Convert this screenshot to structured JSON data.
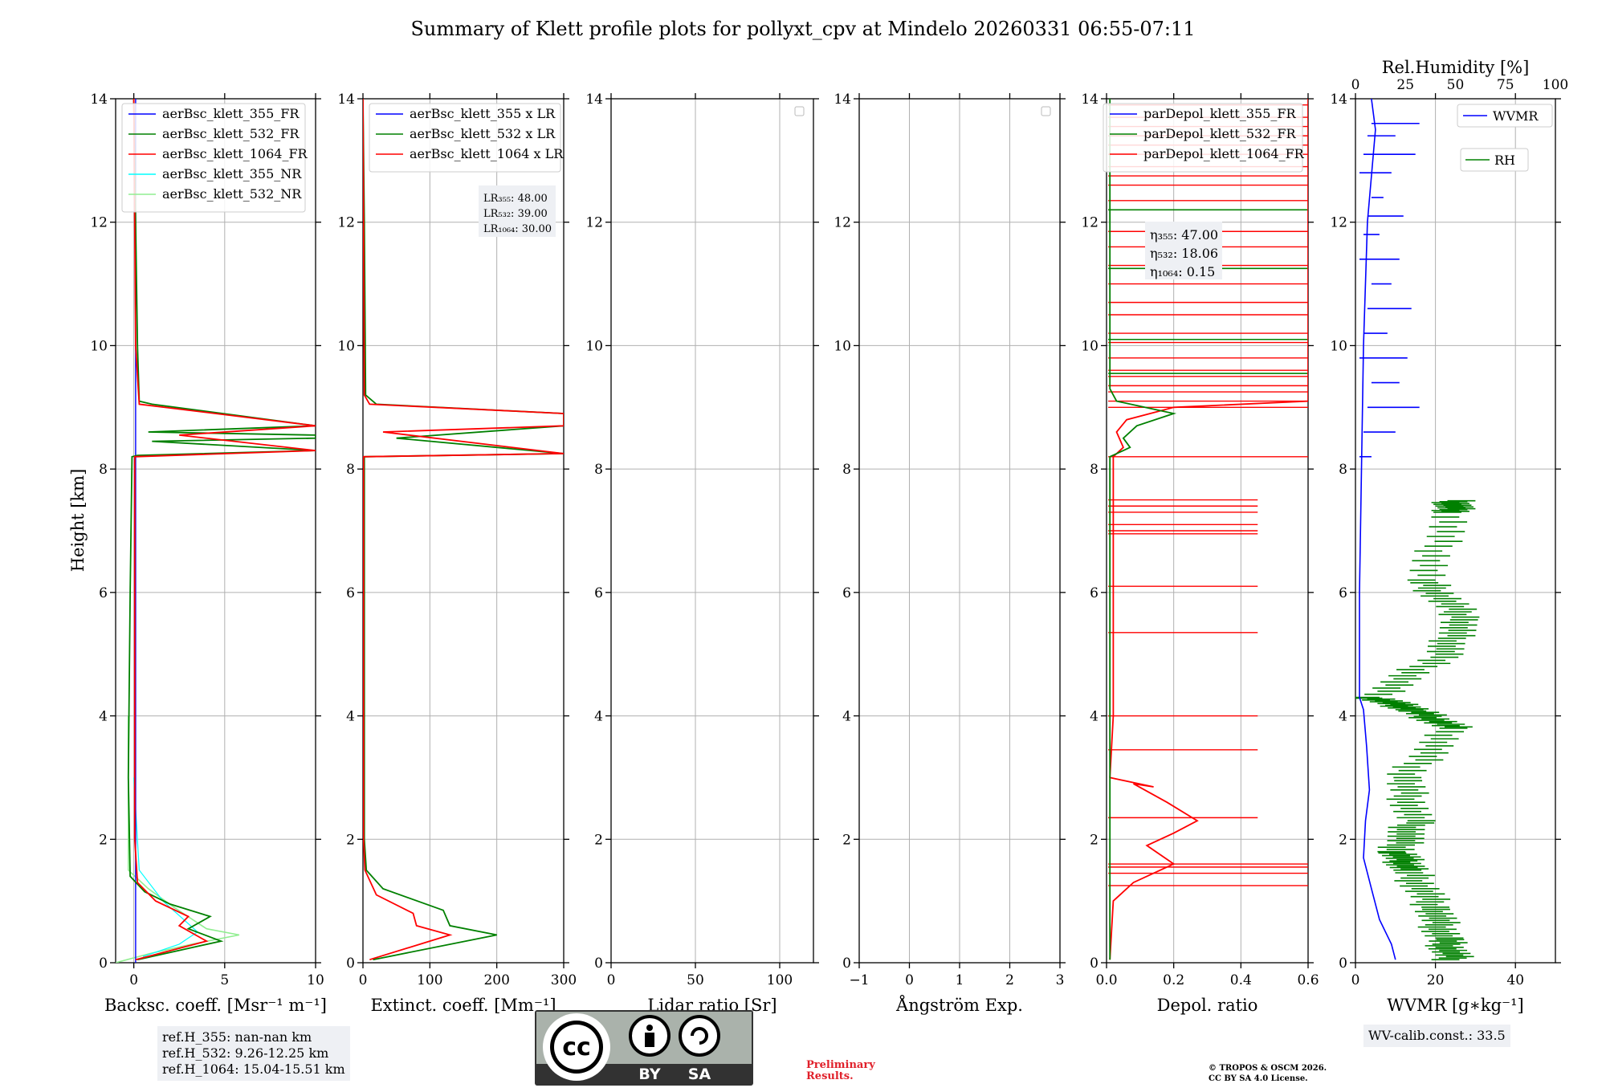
{
  "title": "Summary of Klett profile plots for pollyxt_cpv at Mindelo 20260331 06:55-07:11",
  "ylabel": "Height [km]",
  "ylim": [
    0,
    14
  ],
  "yticks": [
    "0",
    "2",
    "4",
    "6",
    "8",
    "10",
    "12",
    "14"
  ],
  "colors": {
    "c355": "#0000ff",
    "c532": "#008000",
    "c1064": "#ff0000",
    "c355nr": "#00ffff",
    "c532nr": "#90ee90",
    "grid": "#b0b0b0",
    "boxbg": "#eef0f4"
  },
  "panels": [
    {
      "id": "bsc",
      "xlabel": "Backsc. coeff. [Msr⁻¹ m⁻¹]",
      "xlim": [
        -1,
        10
      ],
      "xticks": [
        "0",
        "5",
        "10"
      ],
      "legend": [
        "aerBsc_klett_355_FR",
        "aerBsc_klett_532_FR",
        "aerBsc_klett_1064_FR",
        "aerBsc_klett_355_NR",
        "aerBsc_klett_532_NR"
      ]
    },
    {
      "id": "ext",
      "xlabel": "Extinct. coeff. [Mm⁻¹]",
      "xlim": [
        0,
        300
      ],
      "xticks": [
        "0",
        "100",
        "200",
        "300"
      ],
      "legend": [
        "aerBsc_klett_355 x LR",
        "aerBsc_klett_532 x LR",
        "aerBsc_klett_1064 x LR"
      ],
      "lr_box": [
        "LR₃₅₅: 48.00",
        "LR₅₃₂: 39.00",
        "LR₁₀₆₄: 30.00"
      ]
    },
    {
      "id": "lr",
      "xlabel": "Lidar ratio [Sr]",
      "xlim": [
        0,
        120
      ],
      "xticks": [
        "0",
        "50",
        "100"
      ]
    },
    {
      "id": "ang",
      "xlabel": "Ångström Exp.",
      "xlim": [
        -1,
        3
      ],
      "xticks": [
        "−1",
        "0",
        "1",
        "2",
        "3"
      ]
    },
    {
      "id": "dep",
      "xlabel": "Depol. ratio",
      "xlim": [
        0,
        0.6
      ],
      "xticks": [
        "0.0",
        "0.2",
        "0.4",
        "0.6"
      ],
      "legend": [
        "parDepol_klett_355_FR",
        "parDepol_klett_532_FR",
        "parDepol_klett_1064_FR"
      ],
      "eta_box": [
        "η₃₅₅: 47.00",
        "η₅₃₂: 18.06",
        "η₁₀₆₄: 0.15"
      ]
    },
    {
      "id": "wv",
      "xlabel": "WVMR [g∗kg⁻¹]",
      "xlim": [
        0,
        50
      ],
      "xticks": [
        "0",
        "20",
        "40"
      ],
      "top_label": "Rel.Humidity [%]",
      "top_xlim": [
        0,
        100
      ],
      "top_ticks": [
        "0",
        "25",
        "50",
        "75",
        "100"
      ],
      "legend": [
        "WVMR",
        "RH"
      ]
    }
  ],
  "chart_data": {
    "type": "line",
    "bsc_355_fr": [
      [
        0.1,
        0
      ],
      [
        0.1,
        14
      ]
    ],
    "bsc_532_fr": [
      [
        0.2,
        0.05
      ],
      [
        4.8,
        0.35
      ],
      [
        3,
        0.55
      ],
      [
        4.2,
        0.75
      ],
      [
        2,
        0.95
      ],
      [
        0.6,
        1.15
      ],
      [
        -0.2,
        1.4
      ],
      [
        -0.3,
        3
      ],
      [
        -0.2,
        6
      ],
      [
        -0.1,
        8.2
      ],
      [
        0.2,
        8.22
      ],
      [
        10,
        8.3
      ],
      [
        1,
        8.45
      ],
      [
        10,
        8.5
      ],
      [
        10,
        8.55
      ],
      [
        0.8,
        8.6
      ],
      [
        10,
        8.7
      ],
      [
        1,
        9.05
      ],
      [
        0.3,
        9.1
      ],
      [
        0.2,
        10
      ],
      [
        0.1,
        12
      ],
      [
        0,
        14
      ]
    ],
    "bsc_1064_fr": [
      [
        0.1,
        0.05
      ],
      [
        4,
        0.35
      ],
      [
        2.5,
        0.6
      ],
      [
        3,
        0.75
      ],
      [
        1.2,
        1.0
      ],
      [
        0.2,
        1.3
      ],
      [
        0.05,
        2
      ],
      [
        0.05,
        8.2
      ],
      [
        10,
        8.3
      ],
      [
        2.5,
        8.55
      ],
      [
        10,
        8.7
      ],
      [
        0.3,
        9.05
      ],
      [
        0.1,
        10
      ],
      [
        0,
        14
      ]
    ],
    "bsc_355_nr": [
      [
        0.5,
        0.1
      ],
      [
        2.5,
        0.3
      ],
      [
        3.5,
        0.5
      ],
      [
        1.6,
        1.0
      ],
      [
        0.3,
        1.5
      ],
      [
        0,
        3
      ]
    ],
    "bsc_532_nr": [
      [
        -1,
        0
      ],
      [
        0.9,
        0.15
      ],
      [
        3.2,
        0.3
      ],
      [
        5.8,
        0.45
      ],
      [
        4,
        0.55
      ],
      [
        2.2,
        0.9
      ],
      [
        0.8,
        1.2
      ],
      [
        -0.3,
        1.5
      ],
      [
        -0.3,
        4
      ]
    ],
    "ext_532": [
      [
        15,
        0.05
      ],
      [
        200,
        0.45
      ],
      [
        130,
        0.6
      ],
      [
        120,
        0.85
      ],
      [
        30,
        1.2
      ],
      [
        5,
        1.5
      ],
      [
        2,
        2
      ],
      [
        2,
        8.2
      ],
      [
        300,
        8.25
      ],
      [
        50,
        8.5
      ],
      [
        300,
        8.7
      ],
      [
        300,
        8.9
      ],
      [
        20,
        9.05
      ],
      [
        4,
        9.2
      ],
      [
        2,
        12
      ],
      [
        0,
        14
      ]
    ],
    "ext_1064": [
      [
        10,
        0.05
      ],
      [
        130,
        0.45
      ],
      [
        80,
        0.6
      ],
      [
        75,
        0.8
      ],
      [
        20,
        1.1
      ],
      [
        3,
        1.5
      ],
      [
        1,
        2
      ],
      [
        1,
        8.2
      ],
      [
        300,
        8.25
      ],
      [
        30,
        8.6
      ],
      [
        300,
        8.7
      ],
      [
        300,
        8.9
      ],
      [
        10,
        9.05
      ],
      [
        2,
        9.2
      ],
      [
        1,
        12
      ],
      [
        0,
        14
      ]
    ],
    "dep_532": [
      [
        0.01,
        0.05
      ],
      [
        0.01,
        1.3
      ],
      [
        0.01,
        4
      ],
      [
        0.01,
        8.2
      ],
      [
        0.07,
        8.35
      ],
      [
        0.05,
        8.5
      ],
      [
        0.09,
        8.7
      ],
      [
        0.2,
        8.9
      ],
      [
        0.03,
        9.1
      ],
      [
        0.01,
        9.3
      ],
      [
        0.01,
        14
      ]
    ],
    "dep_1064": [
      [
        0.01,
        0.05
      ],
      [
        0.02,
        1.0
      ],
      [
        0.08,
        1.3
      ],
      [
        0.2,
        1.6
      ],
      [
        0.12,
        1.9
      ],
      [
        0.2,
        2.1
      ],
      [
        0.27,
        2.3
      ],
      [
        0.18,
        2.6
      ],
      [
        0.08,
        2.9
      ],
      [
        0.14,
        2.85
      ],
      [
        0.01,
        3
      ],
      [
        0.02,
        4
      ],
      [
        0.02,
        8.2
      ],
      [
        0.05,
        8.35
      ],
      [
        0.03,
        8.6
      ],
      [
        0.06,
        8.8
      ],
      [
        0.2,
        9.0
      ],
      [
        0.6,
        9.1
      ],
      [
        0.6,
        14
      ]
    ],
    "wvmr": [
      [
        10,
        0.05
      ],
      [
        9,
        0.3
      ],
      [
        6,
        0.7
      ],
      [
        4,
        1.2
      ],
      [
        2,
        1.7
      ],
      [
        2.5,
        2.3
      ],
      [
        3.5,
        2.8
      ],
      [
        2.8,
        3.5
      ],
      [
        2,
        4.1
      ],
      [
        1,
        4.3
      ],
      [
        1,
        6
      ],
      [
        1.5,
        8
      ],
      [
        2,
        10
      ],
      [
        3,
        12
      ],
      [
        5,
        13.5
      ],
      [
        4,
        14
      ]
    ],
    "rh": [
      [
        50,
        0.05
      ],
      [
        45,
        0.4
      ],
      [
        40,
        0.9
      ],
      [
        28,
        1.5
      ],
      [
        22,
        1.8
      ],
      [
        30,
        2.3
      ],
      [
        25,
        3.0
      ],
      [
        50,
        3.8
      ],
      [
        30,
        4.1
      ],
      [
        10,
        4.3
      ],
      [
        45,
        5.0
      ],
      [
        55,
        5.6
      ],
      [
        35,
        6.2
      ],
      [
        50,
        7.3
      ],
      [
        50,
        7.5
      ]
    ]
  },
  "footer": {
    "ref_lines": [
      "ref.H_355: nan-nan km",
      "ref.H_532: 9.26-12.25 km",
      "ref.H_1064: 15.04-15.51 km"
    ],
    "license_badge": {
      "cc": "cc",
      "by": "BY",
      "sa": "SA"
    },
    "preliminary": [
      "Preliminary",
      "Results."
    ],
    "copyright": [
      "© TROPOS & OSCM 2026.",
      "CC BY SA 4.0 License."
    ],
    "wv_calib": "WV-calib.const.: 33.5"
  }
}
